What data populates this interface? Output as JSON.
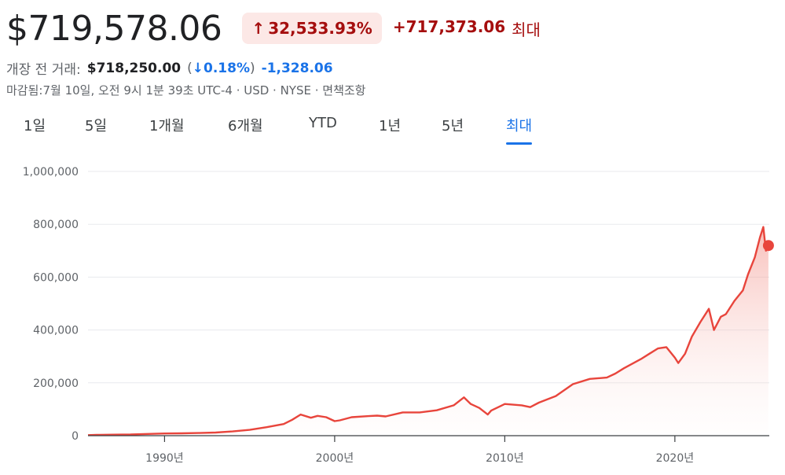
{
  "quote": {
    "price": "$719,578.06",
    "change_arrow": "↑",
    "change_pct": "32,533.93%",
    "change_abs": "+717,373.06",
    "period_label": "최대"
  },
  "premarket": {
    "label": "개장 전 거래:",
    "price": "$718,250.00",
    "open_paren": "(",
    "arrow": "↓",
    "pct": "0.18%",
    "close_paren": ")",
    "abs": "-1,328.06"
  },
  "meta": {
    "text": "마감됨:7월 10일, 오전 9시 1분 39초 UTC-4 · USD · NYSE · 면책조항"
  },
  "tabs": [
    {
      "label": "1일",
      "active": false
    },
    {
      "label": "5일",
      "active": false
    },
    {
      "label": "1개월",
      "active": false
    },
    {
      "label": "6개월",
      "active": false
    },
    {
      "label": "YTD",
      "active": false
    },
    {
      "label": "1년",
      "active": false
    },
    {
      "label": "5년",
      "active": false
    },
    {
      "label": "최대",
      "active": true
    }
  ],
  "colors": {
    "line": "#e8453c",
    "fill": "#fce8e6",
    "grid": "#e8eaed",
    "axis": "#3c4043",
    "accent": "#1a73e8"
  },
  "chart_data": {
    "type": "area",
    "title": "",
    "xlabel": "",
    "ylabel": "",
    "ylim": [
      0,
      1000000
    ],
    "xlim": [
      1985.5,
      2025.55
    ],
    "y_ticks": [
      0,
      200000,
      400000,
      600000,
      800000,
      1000000
    ],
    "y_tick_labels": [
      "0",
      "200,000",
      "400,000",
      "600,000",
      "800,000",
      "1,000,000"
    ],
    "x_ticks": [
      1990,
      2000,
      2010,
      2020
    ],
    "x_tick_labels": [
      "1990년",
      "2000년",
      "2010년",
      "2020년"
    ],
    "grid": true,
    "series": [
      {
        "x": [
          1985.5,
          1986,
          1987,
          1988,
          1989,
          1990,
          1991,
          1992,
          1993,
          1994,
          1995,
          1996,
          1997,
          1997.5,
          1998,
          1998.6,
          1999,
          1999.5,
          2000,
          2000.3,
          2001,
          2002,
          2002.5,
          2003,
          2004,
          2005,
          2006,
          2007,
          2007.6,
          2008,
          2008.5,
          2009,
          2009.2,
          2010,
          2011,
          2011.5,
          2012,
          2013,
          2014,
          2015,
          2016,
          2016.5,
          2017,
          2018,
          2018.5,
          2019,
          2019.5,
          2020,
          2020.2,
          2020.6,
          2021,
          2021.5,
          2022,
          2022.3,
          2022.7,
          2023,
          2023.5,
          2024,
          2024.3,
          2024.7,
          2025,
          2025.2,
          2025.35,
          2025.5
        ],
        "values": [
          2200,
          2900,
          4000,
          4600,
          6500,
          8200,
          8800,
          10000,
          12000,
          16000,
          22000,
          32000,
          44000,
          60000,
          80000,
          68000,
          75000,
          70000,
          55000,
          58000,
          70000,
          74000,
          76000,
          73000,
          88000,
          88000,
          96000,
          115000,
          145000,
          120000,
          105000,
          80000,
          95000,
          120000,
          115000,
          108000,
          125000,
          150000,
          195000,
          215000,
          220000,
          235000,
          255000,
          290000,
          310000,
          330000,
          335000,
          295000,
          275000,
          310000,
          375000,
          430000,
          480000,
          400000,
          450000,
          460000,
          510000,
          550000,
          610000,
          675000,
          750000,
          790000,
          700000,
          719578
        ]
      }
    ],
    "last_point": {
      "x": 2025.5,
      "y": 719578
    }
  }
}
